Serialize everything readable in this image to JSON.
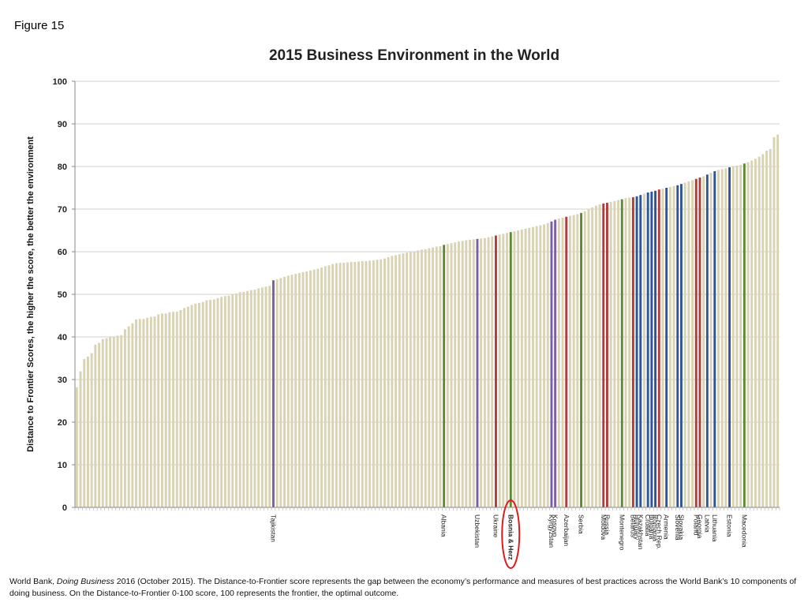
{
  "figure_label": "Figure 15",
  "caption": {
    "source_prefix": "World Bank, ",
    "source_title": "Doing Business",
    "source_suffix": " 2016  (October 2015). The Distance-to-Frontier score represents the gap between the economy’s performance and measures of best practices across the World Bank’s 10 components of doing business. On the Distance-to-Frontier 0-100 score, 100 represents the frontier, the optimal outcome."
  },
  "chart_data": {
    "type": "bar",
    "title": "2015 Business Environment in the World",
    "xlabel": "",
    "ylabel": "Distance to Frontier Scores, the higher the score, the better the environment",
    "ylim": [
      0,
      100
    ],
    "yticks": [
      0,
      10,
      20,
      30,
      40,
      50,
      60,
      70,
      80,
      90,
      100
    ],
    "grid": true,
    "colors": {
      "default": "#d9d3b4",
      "purple": "#7a5ea8",
      "green": "#5d8a2f",
      "red": "#b23b3b",
      "blue": "#2f5597"
    },
    "values": [
      28.2,
      31.9,
      34.8,
      35.4,
      36.2,
      38.2,
      38.6,
      39.5,
      39.7,
      39.9,
      40.1,
      40.3,
      40.4,
      41.8,
      42.5,
      43.2,
      44.1,
      44.2,
      44.2,
      44.5,
      44.7,
      44.8,
      45.3,
      45.5,
      45.5,
      45.8,
      45.9,
      45.9,
      46.3,
      46.8,
      47.1,
      47.5,
      47.8,
      48.0,
      48.2,
      48.6,
      48.7,
      48.8,
      49.1,
      49.4,
      49.6,
      49.7,
      50.0,
      50.2,
      50.5,
      50.6,
      50.8,
      51.0,
      51.1,
      51.4,
      51.6,
      51.8,
      52.0,
      53.3,
      53.5,
      53.8,
      54.1,
      54.4,
      54.6,
      54.8,
      55.0,
      55.2,
      55.4,
      55.6,
      55.8,
      56.0,
      56.3,
      56.6,
      56.8,
      57.1,
      57.3,
      57.4,
      57.4,
      57.5,
      57.6,
      57.6,
      57.7,
      57.8,
      57.8,
      57.9,
      58.0,
      58.1,
      58.2,
      58.4,
      58.7,
      59.0,
      59.2,
      59.4,
      59.6,
      59.8,
      60.0,
      60.1,
      60.3,
      60.5,
      60.6,
      60.8,
      61.0,
      61.2,
      61.3,
      61.6,
      61.8,
      62.0,
      62.2,
      62.4,
      62.5,
      62.7,
      62.8,
      62.9,
      63.0,
      63.1,
      63.2,
      63.4,
      63.6,
      63.8,
      64.0,
      64.2,
      64.4,
      64.6,
      64.8,
      65.0,
      65.2,
      65.4,
      65.6,
      65.8,
      66.0,
      66.2,
      66.4,
      66.7,
      67.1,
      67.5,
      67.8,
      68.0,
      68.2,
      68.4,
      68.6,
      68.8,
      69.1,
      69.5,
      70.0,
      70.4,
      70.8,
      71.1,
      71.3,
      71.5,
      71.7,
      71.9,
      72.1,
      72.3,
      72.6,
      72.7,
      72.8,
      73.0,
      73.3,
      73.6,
      73.9,
      74.1,
      74.3,
      74.6,
      74.8,
      75.0,
      75.2,
      75.4,
      75.6,
      75.9,
      76.2,
      76.5,
      76.8,
      77.1,
      77.4,
      77.7,
      78.1,
      78.5,
      78.9,
      79.2,
      79.4,
      79.6,
      79.8,
      80.0,
      80.2,
      80.4,
      80.7,
      81.0,
      81.4,
      81.8,
      82.3,
      82.9,
      83.7,
      84.1,
      86.9,
      87.5
    ],
    "highlights": [
      {
        "label": "Tajikistan",
        "index": 53,
        "color": "purple"
      },
      {
        "label": "Albania",
        "index": 99,
        "color": "green"
      },
      {
        "label": "Uzbekistan",
        "index": 108,
        "color": "purple"
      },
      {
        "label": "Ukraine",
        "index": 113,
        "color": "red"
      },
      {
        "label": "Bosnia & Herz",
        "index": 117,
        "color": "green",
        "circled": true
      },
      {
        "label": "Kyrgyzstan",
        "index": 128,
        "color": "purple"
      },
      {
        "label": "Kosovo",
        "index": 129,
        "color": "purple"
      },
      {
        "label": "Azerbaijan",
        "index": 132,
        "color": "red"
      },
      {
        "label": "Serbia",
        "index": 136,
        "color": "green"
      },
      {
        "label": "Moldova",
        "index": 142,
        "color": "red"
      },
      {
        "label": "Russia",
        "index": 143,
        "color": "red"
      },
      {
        "label": "Montenegro",
        "index": 147,
        "color": "green"
      },
      {
        "label": "Belarus",
        "index": 150,
        "color": "red"
      },
      {
        "label": "Hungary",
        "index": 151,
        "color": "blue"
      },
      {
        "label": "Kazakhstan",
        "index": 152,
        "color": "blue"
      },
      {
        "label": "Croatia",
        "index": 154,
        "color": "blue"
      },
      {
        "label": "Bulgaria",
        "index": 155,
        "color": "blue"
      },
      {
        "label": "Romania",
        "index": 156,
        "color": "blue"
      },
      {
        "label": "Czech Rep.",
        "index": 157,
        "color": "red"
      },
      {
        "label": "Armenia",
        "index": 159,
        "color": "blue"
      },
      {
        "label": "Slovenia",
        "index": 162,
        "color": "blue"
      },
      {
        "label": "Slovakia",
        "index": 163,
        "color": "blue"
      },
      {
        "label": "Poland",
        "index": 167,
        "color": "red"
      },
      {
        "label": "Georgia",
        "index": 168,
        "color": "red"
      },
      {
        "label": "Latvia",
        "index": 170,
        "color": "blue"
      },
      {
        "label": "Lithuania",
        "index": 172,
        "color": "blue"
      },
      {
        "label": "Estonia",
        "index": 176,
        "color": "blue"
      },
      {
        "label": "Macedonia",
        "index": 180,
        "color": "green"
      }
    ]
  }
}
